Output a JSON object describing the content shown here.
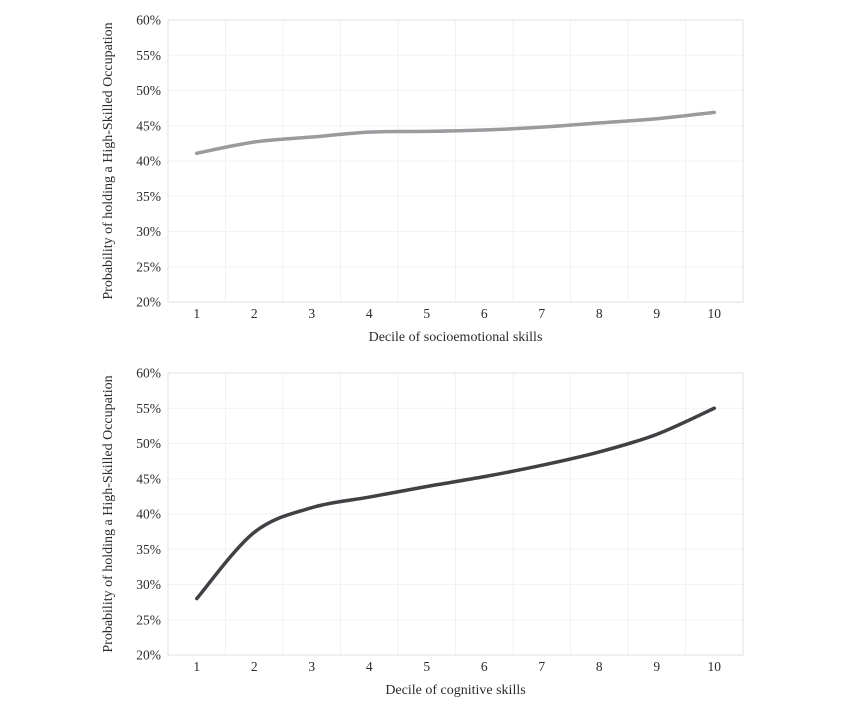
{
  "page": {
    "background": "#ffffff"
  },
  "colors": {
    "gridline": "#f2f2f2",
    "plot_border": "#e5e5e5",
    "text": "#2b2b2b",
    "socioemotional_line": "#9a9a9f",
    "cognitive_line": "#404045"
  },
  "chart_data": [
    {
      "type": "line",
      "panel": "socioemotional",
      "title": "",
      "xlabel": "Decile of socioemotional skills",
      "ylabel": "Probability of holding a High-Skilled Occupation",
      "categories": [
        "1",
        "2",
        "3",
        "4",
        "5",
        "6",
        "7",
        "8",
        "9",
        "10"
      ],
      "values": [
        41.1,
        42.7,
        43.4,
        44.1,
        44.2,
        44.4,
        44.8,
        45.4,
        46.0,
        46.9
      ],
      "ylim": [
        20,
        60
      ],
      "ytick_step": 5,
      "ytick_suffix": "%",
      "grid": true,
      "legend": "none",
      "line_color": "#9a9a9f",
      "line_width": 3.5
    },
    {
      "type": "line",
      "panel": "cognitive",
      "title": "",
      "xlabel": "Decile of cognitive skills",
      "ylabel": "Probability of holding a High-Skilled Occupation",
      "categories": [
        "1",
        "2",
        "3",
        "4",
        "5",
        "6",
        "7",
        "8",
        "9",
        "10"
      ],
      "values": [
        28.0,
        37.4,
        40.9,
        42.4,
        43.9,
        45.3,
        46.9,
        48.8,
        51.3,
        55.0
      ],
      "ylim": [
        20,
        60
      ],
      "ytick_step": 5,
      "ytick_suffix": "%",
      "grid": true,
      "legend": "none",
      "line_color": "#404045",
      "line_width": 3.5
    }
  ]
}
